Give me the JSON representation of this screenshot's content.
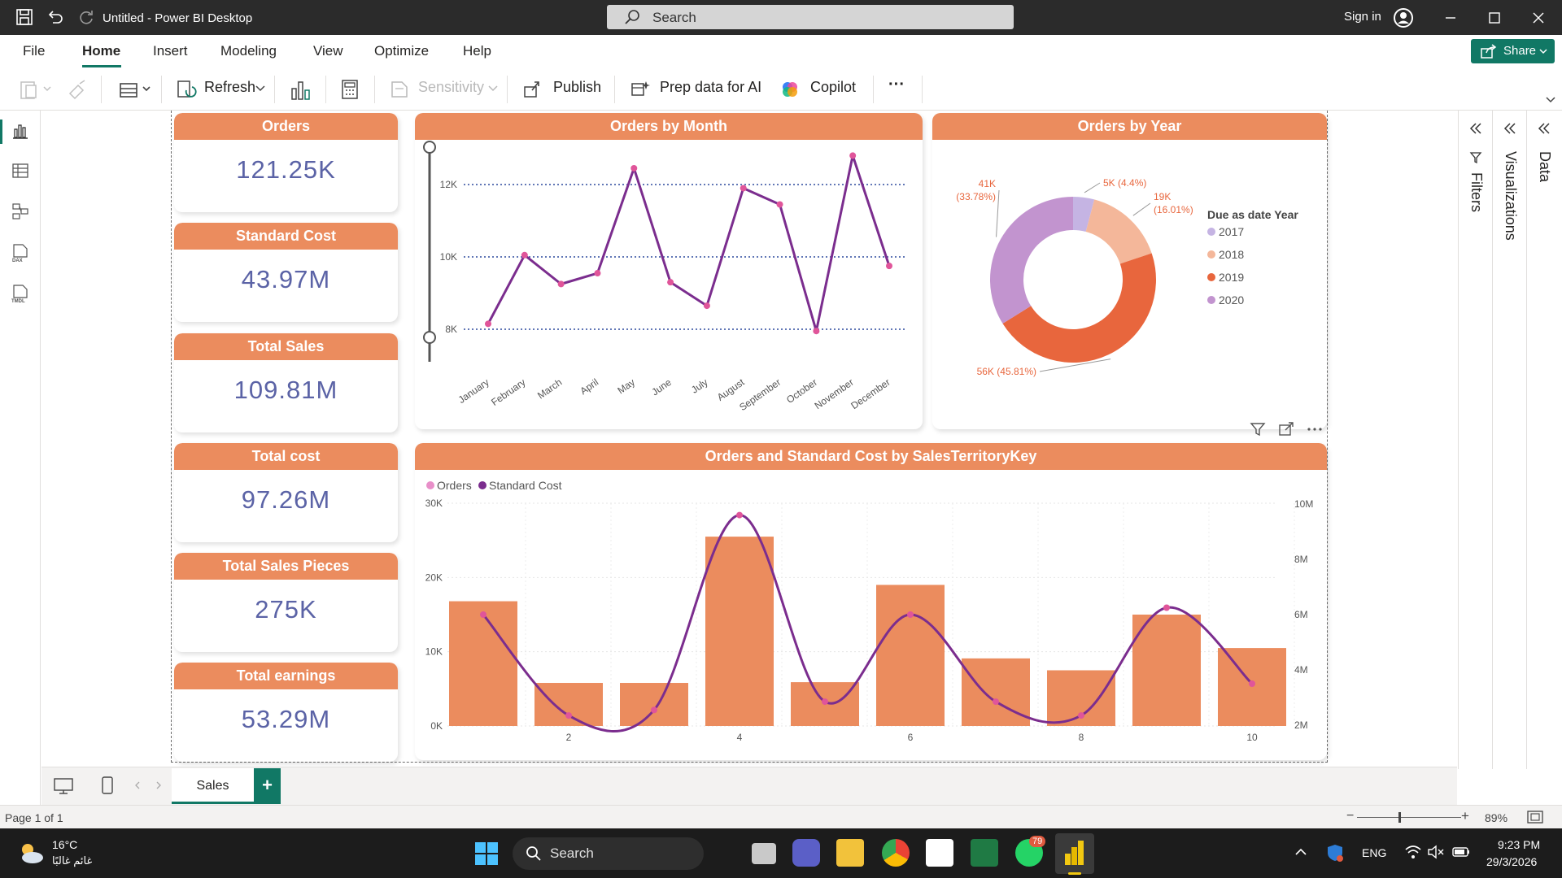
{
  "window": {
    "title": "Untitled - Power BI Desktop",
    "search_placeholder": "Search",
    "signin_label": "Sign in"
  },
  "menu": {
    "items": [
      "File",
      "Home",
      "Insert",
      "Modeling",
      "View",
      "Optimize",
      "Help"
    ],
    "active": "Home",
    "share_label": "Share"
  },
  "toolbar": {
    "refresh": "Refresh",
    "sensitivity": "Sensitivity",
    "publish": "Publish",
    "prep_ai": "Prep data for AI",
    "copilot": "Copilot",
    "more": "···"
  },
  "kpis": [
    {
      "label": "Orders",
      "value": "121.25K"
    },
    {
      "label": "Standard Cost",
      "value": "43.97M"
    },
    {
      "label": "Total Sales",
      "value": "109.81M"
    },
    {
      "label": "Total cost",
      "value": "97.26M"
    },
    {
      "label": "Total Sales Pieces",
      "value": "275K"
    },
    {
      "label": "Total earnings",
      "value": "53.29M"
    }
  ],
  "panels": {
    "orders_by_month": "Orders by Month",
    "orders_by_year": "Orders by Year",
    "combo": "Orders and Standard Cost by SalesTerritoryKey"
  },
  "chart_data": [
    {
      "type": "line",
      "title": "Orders by Month",
      "categories": [
        "January",
        "February",
        "March",
        "April",
        "May",
        "June",
        "July",
        "August",
        "September",
        "October",
        "November",
        "December"
      ],
      "values": [
        8150,
        10050,
        9250,
        9550,
        12450,
        9300,
        8650,
        11900,
        11450,
        7950,
        12800,
        9750
      ],
      "yticks": [
        "12K",
        "10K",
        "8K"
      ],
      "ylim": [
        7000,
        13000
      ],
      "color": "#7b2d8e",
      "marker_color": "#e0559a"
    },
    {
      "type": "pie",
      "variant": "donut",
      "title": "Orders by Year",
      "legend_title": "Due as date Year",
      "slices": [
        {
          "label": "2017",
          "value": 5,
          "text": "5K (4.4%)",
          "color": "#c5b4e3"
        },
        {
          "label": "2018",
          "value": 19,
          "text": "19K (16.01%)",
          "color": "#f4b79a"
        },
        {
          "label": "2019",
          "value": 56,
          "text": "56K (45.81%)",
          "color": "#e8663d"
        },
        {
          "label": "2020",
          "value": 41,
          "text": "41K (33.78%)",
          "color": "#c294cf"
        }
      ]
    },
    {
      "type": "bar",
      "title": "Orders and Standard Cost by SalesTerritoryKey",
      "legend": [
        "Orders",
        "Standard Cost"
      ],
      "categories": [
        1,
        2,
        3,
        4,
        5,
        6,
        7,
        8,
        9,
        10
      ],
      "xticks": [
        "2",
        "4",
        "6",
        "8",
        "10"
      ],
      "series": [
        {
          "name": "Orders",
          "axis": "left",
          "type": "bar",
          "values": [
            16800,
            5800,
            5800,
            25500,
            5900,
            19000,
            9100,
            7500,
            15000,
            10500
          ],
          "color": "#eb8c5e"
        },
        {
          "name": "Standard Cost",
          "axis": "right",
          "type": "line",
          "values": [
            6000000,
            2350000,
            2550000,
            9600000,
            2850000,
            6000000,
            2850000,
            2350000,
            6250000,
            3500000
          ],
          "color": "#7b2d8e"
        }
      ],
      "yticks_left": [
        "30K",
        "20K",
        "10K",
        "0K"
      ],
      "yticks_right": [
        "10M",
        "8M",
        "6M",
        "4M",
        "2M"
      ],
      "ylim_left": [
        0,
        30000
      ],
      "ylim_right": [
        2000000,
        10000000
      ]
    }
  ],
  "right_panes": [
    "Filters",
    "Visualizations",
    "Data"
  ],
  "page_tab": "Sales",
  "status": {
    "page": "Page 1 of 1",
    "zoom": "89%"
  },
  "taskbar": {
    "weather_temp": "16°C",
    "weather_desc": "غائم غالبًا",
    "search": "Search",
    "badge": "79",
    "lang": "ENG",
    "time": "9:23 PM",
    "date": "29/3/2026"
  }
}
